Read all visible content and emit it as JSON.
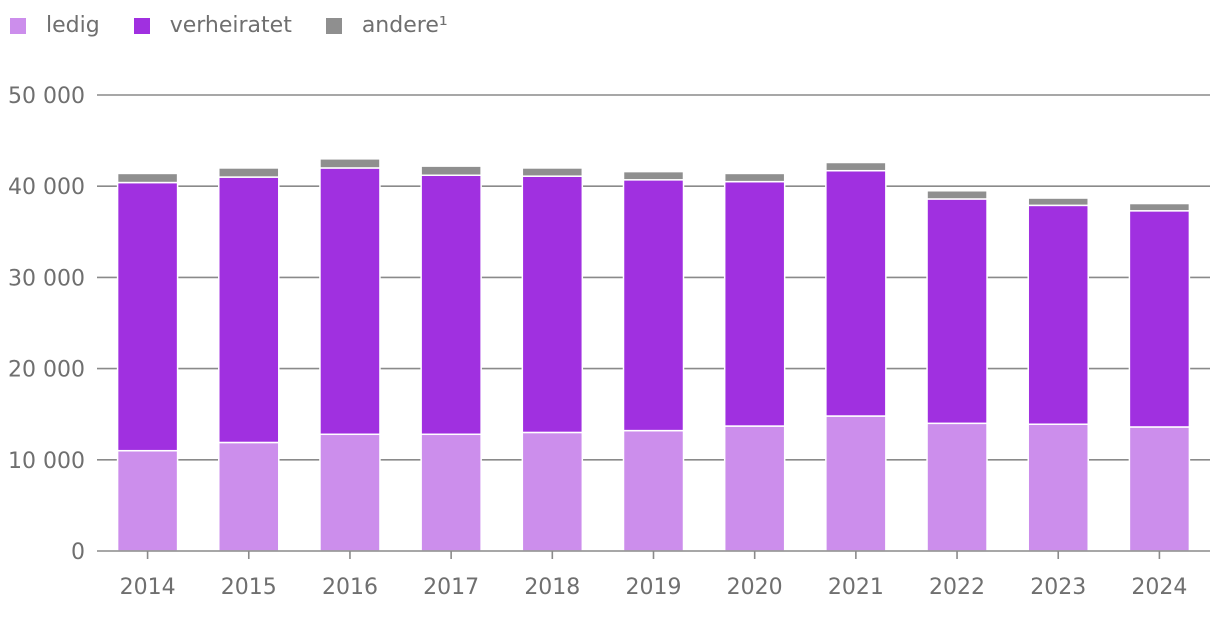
{
  "chart_data": {
    "type": "bar",
    "stacked": true,
    "categories": [
      "2014",
      "2015",
      "2016",
      "2017",
      "2018",
      "2019",
      "2020",
      "2021",
      "2022",
      "2023",
      "2024"
    ],
    "series": [
      {
        "name": "ledig",
        "color": "#cc8eec",
        "values": [
          11000,
          11900,
          12800,
          12800,
          13000,
          13200,
          13700,
          14800,
          14000,
          13900,
          13600
        ]
      },
      {
        "name": "verheiratet",
        "color": "#a030e0",
        "values": [
          29400,
          29100,
          29200,
          28400,
          28100,
          27500,
          26800,
          26900,
          24600,
          24000,
          23700
        ]
      },
      {
        "name": "andere¹",
        "color": "#8f8f8f",
        "values": [
          1000,
          1000,
          1000,
          1000,
          900,
          900,
          900,
          900,
          900,
          800,
          800
        ]
      }
    ],
    "ylim": [
      0,
      50000
    ],
    "yticks": [
      0,
      10000,
      20000,
      30000,
      40000,
      50000
    ],
    "ytick_labels": [
      "0",
      "10 000",
      "20 000",
      "30 000",
      "40 000",
      "50 000"
    ],
    "title": "",
    "xlabel": "",
    "ylabel": "",
    "grid": true,
    "legend_position": "top-left"
  }
}
